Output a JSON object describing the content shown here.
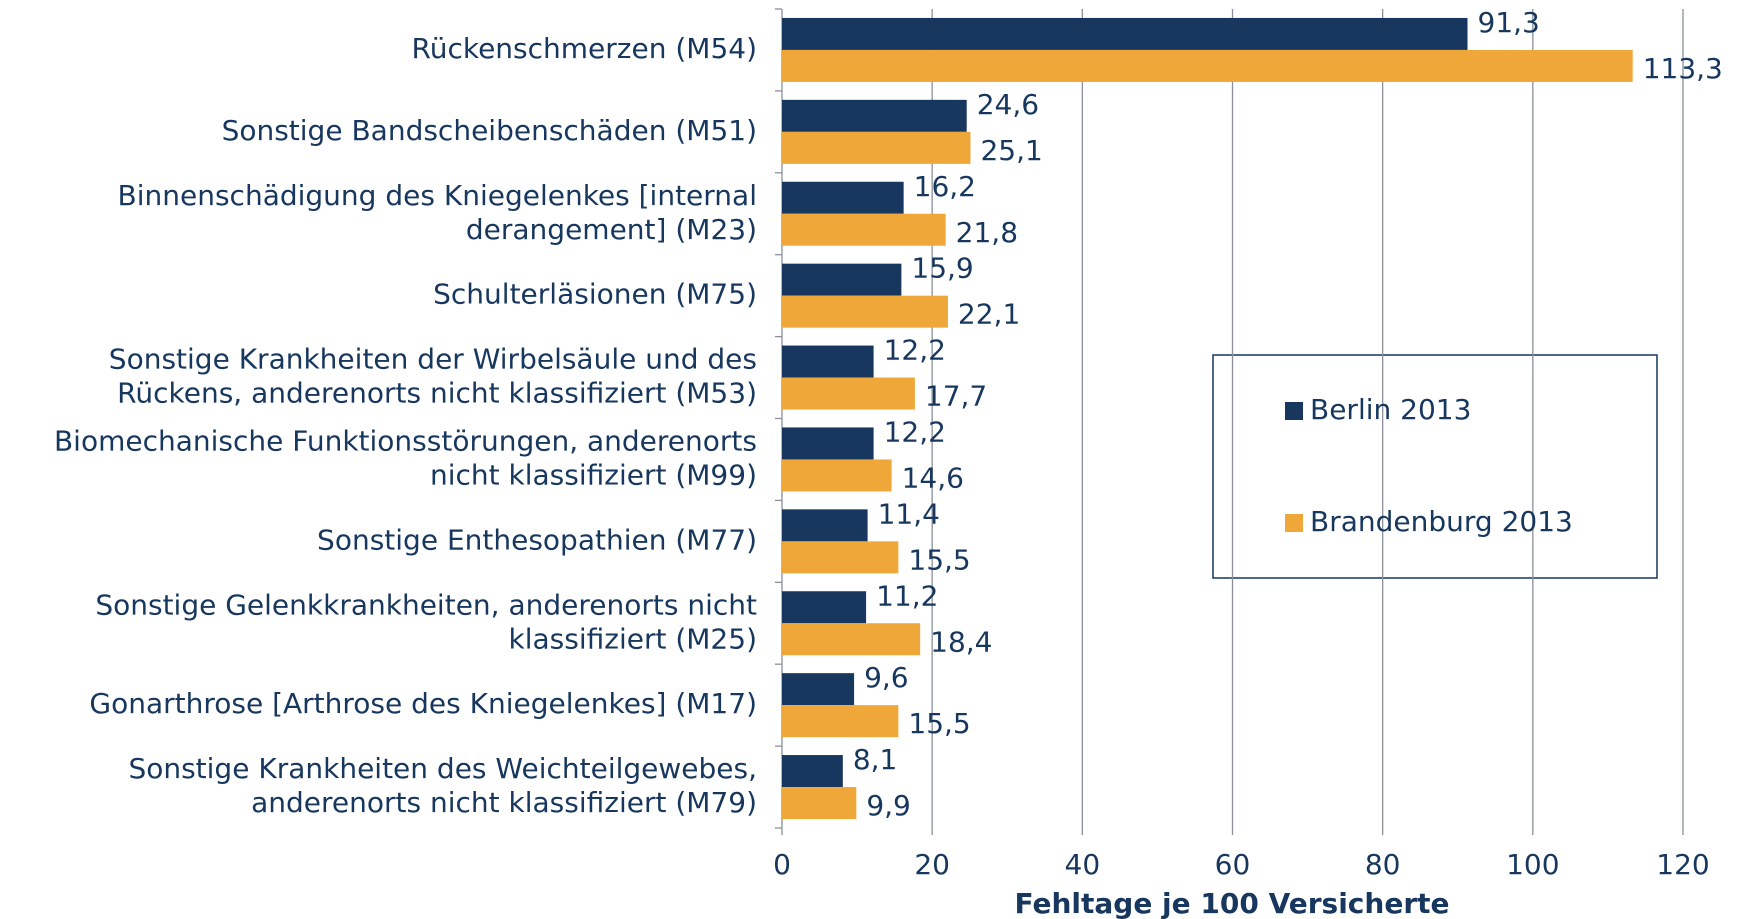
{
  "chart_data": {
    "type": "barh",
    "xlabel": "Fehltage je 100 Versicherte",
    "categories": [
      [
        "Rückenschmerzen (M54)"
      ],
      [
        "Sonstige Bandscheibenschäden (M51)"
      ],
      [
        "Binnenschädigung des Kniegelenkes [internal",
        "derangement] (M23)"
      ],
      [
        "Schulterläsionen (M75)"
      ],
      [
        "Sonstige Krankheiten der Wirbelsäule und des",
        "Rückens, anderenorts nicht klassifiziert (M53)"
      ],
      [
        "Biomechanische Funktionsstörungen, anderenorts",
        "nicht klassifiziert (M99)"
      ],
      [
        "Sonstige Enthesopathien (M77)"
      ],
      [
        "Sonstige Gelenkkrankheiten, anderenorts nicht",
        "klassifiziert (M25)"
      ],
      [
        "Gonarthrose [Arthrose des Kniegelenkes] (M17)"
      ],
      [
        "Sonstige Krankheiten des Weichteilgewebes,",
        "anderenorts nicht klassifiziert (M79)"
      ]
    ],
    "series": [
      {
        "name": "Berlin 2013",
        "color": "#17375e",
        "values": [
          91.3,
          24.6,
          16.2,
          15.9,
          12.2,
          12.2,
          11.4,
          11.2,
          9.6,
          8.1
        ],
        "value_labels": [
          "91,3",
          "24,6",
          "16,2",
          "15,9",
          "12,2",
          "12,2",
          "11,4",
          "11,2",
          "9,6",
          "8,1"
        ]
      },
      {
        "name": "Brandenburg 2013",
        "color": "#f0a73a",
        "values": [
          113.3,
          25.1,
          21.8,
          22.1,
          17.7,
          14.6,
          15.5,
          18.4,
          15.5,
          9.9
        ],
        "value_labels": [
          "113,3",
          "25,1",
          "21,8",
          "22,1",
          "17,7",
          "14,6",
          "15,5",
          "18,4",
          "15,5",
          "9,9"
        ]
      }
    ],
    "xlim": [
      0,
      120
    ],
    "xticks": [
      0,
      20,
      40,
      60,
      80,
      100,
      120
    ],
    "grid": true
  }
}
